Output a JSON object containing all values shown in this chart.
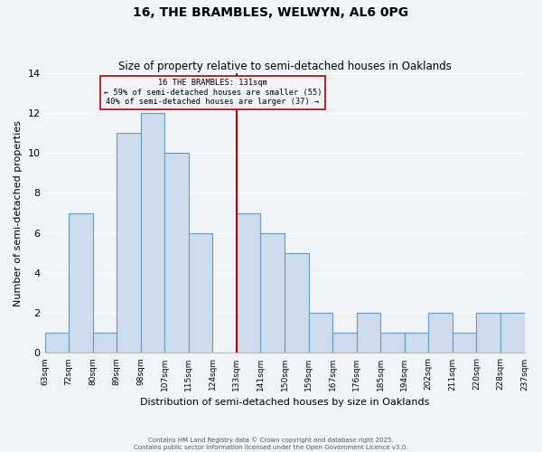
{
  "title": "16, THE BRAMBLES, WELWYN, AL6 0PG",
  "subtitle": "Size of property relative to semi-detached houses in Oaklands",
  "xlabel": "Distribution of semi-detached houses by size in Oaklands",
  "ylabel": "Number of semi-detached properties",
  "bin_labels": [
    "63sqm",
    "72sqm",
    "80sqm",
    "89sqm",
    "98sqm",
    "107sqm",
    "115sqm",
    "124sqm",
    "133sqm",
    "141sqm",
    "150sqm",
    "159sqm",
    "167sqm",
    "176sqm",
    "185sqm",
    "194sqm",
    "202sqm",
    "211sqm",
    "220sqm",
    "228sqm",
    "237sqm"
  ],
  "n_bins": 20,
  "counts": [
    1,
    7,
    1,
    11,
    12,
    10,
    6,
    0,
    7,
    6,
    5,
    2,
    1,
    2,
    1,
    1,
    2,
    1,
    2,
    2
  ],
  "bar_color": "#ccdcec",
  "bar_edge_color": "#6699bb",
  "reference_bin_index": 8,
  "reference_line_color": "#bb0000",
  "annotation_title": "16 THE BRAMBLES: 131sqm",
  "annotation_line1": "← 59% of semi-detached houses are smaller (55)",
  "annotation_line2": "40% of semi-detached houses are larger (37) →",
  "annotation_box_color": "#bb0000",
  "ylim": [
    0,
    14
  ],
  "yticks": [
    0,
    2,
    4,
    6,
    8,
    10,
    12,
    14
  ],
  "background_color": "#f0f4f8",
  "grid_color": "#ffffff",
  "footer_line1": "Contains HM Land Registry data © Crown copyright and database right 2025.",
  "footer_line2": "Contains public sector information licensed under the Open Government Licence v3.0."
}
